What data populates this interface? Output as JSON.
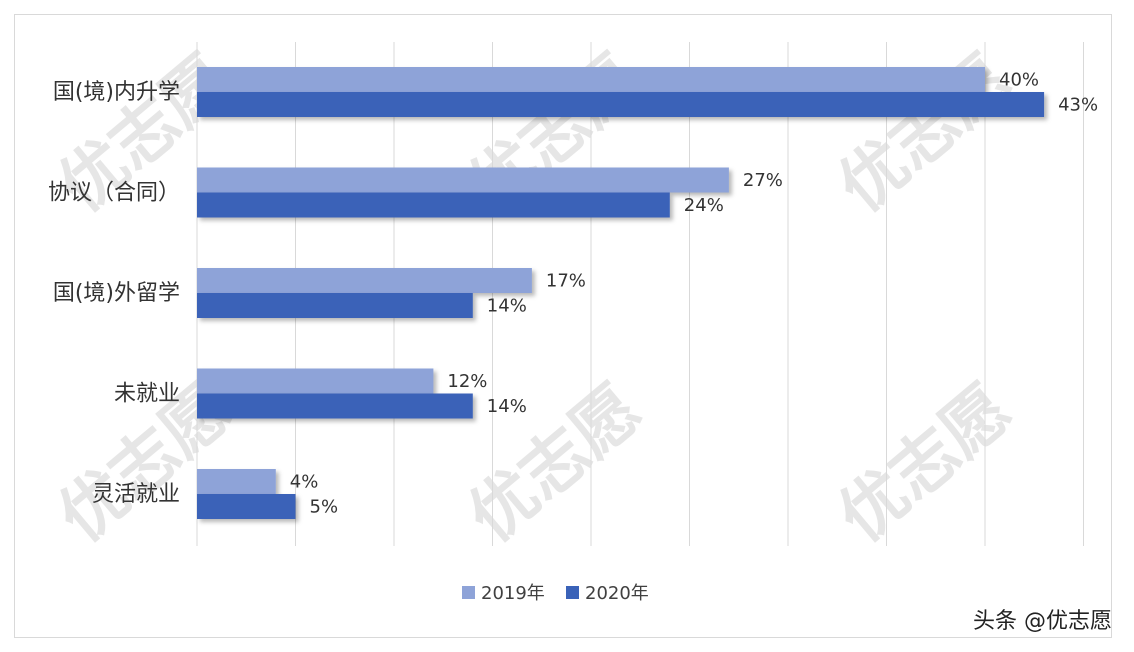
{
  "chart_data": {
    "type": "bar",
    "orientation": "horizontal",
    "categories": [
      "国(境)内升学",
      "协议（合同）",
      "国(境)外留学",
      "未就业",
      "灵活就业"
    ],
    "series": [
      {
        "name": "2019年",
        "values": [
          40,
          27,
          17,
          12,
          4
        ],
        "labels": [
          "40%",
          "27%",
          "17%",
          "12%",
          "4%"
        ],
        "color": "#8ea3d8"
      },
      {
        "name": "2020年",
        "values": [
          43,
          24,
          14,
          14,
          5
        ],
        "labels": [
          "43%",
          "24%",
          "14%",
          "14%",
          "5%"
        ],
        "color": "#3a62b8"
      }
    ],
    "xlim": [
      0,
      45
    ],
    "x_gridline_step": 5,
    "legend_position": "bottom-center",
    "unit": "%"
  },
  "watermark": {
    "text": "优志愿"
  },
  "credit": {
    "text": "头条 @优志愿"
  }
}
